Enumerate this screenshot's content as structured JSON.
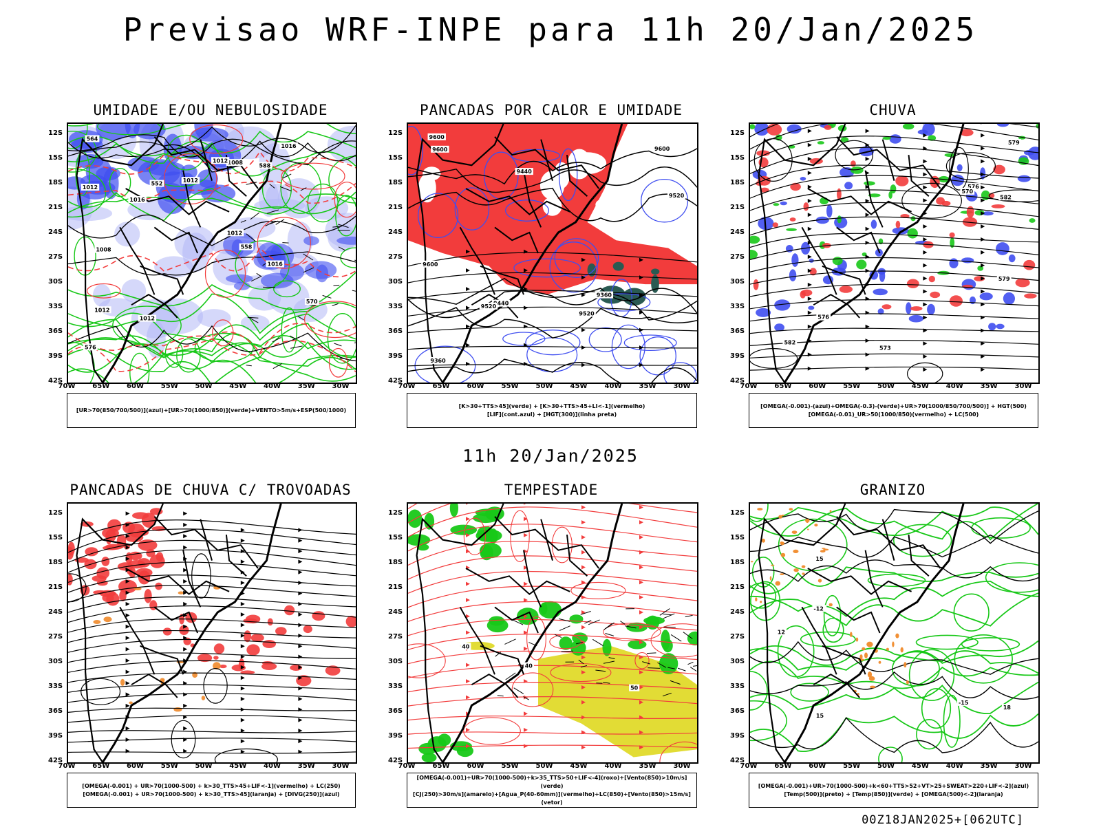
{
  "title": "Previsao WRF-INPE  para 11h 20/Jan/2025",
  "mid_title": "11h 20/Jan/2025",
  "footer": "00Z18JAN2025+[062UTC]",
  "lat_labels": [
    "12S",
    "15S",
    "18S",
    "21S",
    "24S",
    "27S",
    "30S",
    "33S",
    "36S",
    "39S",
    "42S"
  ],
  "lon_labels": [
    "70W",
    "65W",
    "60W",
    "55W",
    "50W",
    "45W",
    "40W",
    "35W",
    "30W"
  ],
  "colors": {
    "red": "#f23c3c",
    "blue": "#3f4ef0",
    "light_blue": "#b3b8f5",
    "green": "#18c818",
    "orange": "#f08a2a",
    "yellow": "#e2dc35",
    "dark_teal": "#2a5a52",
    "black": "#000000"
  },
  "panels": [
    {
      "id": "umidade",
      "title": "UMIDADE E/OU NEBULOSIDADE",
      "legend": [
        "[UR>70(850/700/500)](azul)+[UR>70(1000/850)](verde)+VENTO>5m/s+ESP(500/1000)"
      ],
      "contour_labels": [
        "1012",
        "1012",
        "1008",
        "1012",
        "1016",
        "1012",
        "1016",
        "1012",
        "1008",
        "1012",
        "1016",
        "576",
        "570",
        "564",
        "558",
        "552",
        "588"
      ]
    },
    {
      "id": "pancadas-calor",
      "title": "PANCADAS POR CALOR E UMIDADE",
      "legend": [
        "[K>30+TTS>45](verde) + [K>30+TTS>45+LI<-1](vermelho)",
        "[LIF](cont.azul) + [HGT(300)](linha preta)"
      ],
      "contour_labels": [
        "9600",
        "9600",
        "9600",
        "9600",
        "9520",
        "9520",
        "9440",
        "9440",
        "9360",
        "9360",
        "9520"
      ]
    },
    {
      "id": "chuva",
      "title": "CHUVA",
      "legend": [
        "[OMEGA(-0.001)-(azul)+OMEGA(-0.3)-(verde)+UR>70(1000/850/700/500)] + HGT(500)",
        "[OMEGA(-0.01)_UR>50(1000/850)(vermelho) + LC(500)"
      ],
      "contour_labels": [
        "582",
        "576",
        "579",
        "573",
        "570",
        "576",
        "582",
        "579"
      ]
    },
    {
      "id": "trovoadas",
      "title": "PANCADAS DE CHUVA C/ TROVOADAS",
      "legend": [
        "[OMEGA(-0.001) + UR>70(1000-500) + k>30_TTS>45+LIF<-1](vermelho) + LC(250)",
        "[OMEGA(-0.001) + UR>70(1000-500) + k>30_TTS>45](laranja) + [DIVG(250)](azul)"
      ],
      "contour_labels": []
    },
    {
      "id": "tempestade",
      "title": "TEMPESTADE",
      "legend": [
        "[OMEGA(-0.001)+UR>70(1000-500)+k>35_TTS>50+LIF<-4](roxo)+[Vento(850)>10m/s](verde)",
        "[CJ(250)>30m/s](amarelo)+[Agua_P(40-60mm)](vermelho)+LC(850)+[Vento(850)>15m/s](vetor)"
      ],
      "contour_labels": [
        "40",
        "40",
        "50"
      ]
    },
    {
      "id": "granizo",
      "title": "GRANIZO",
      "legend": [
        "[OMEGA(-0.001)+UR>70(1000-500)+k<60+TTS>52+VT>25+SWEAT>220+LIF<-2](azul)",
        "[Temp(500)](preto) + [Temp(850)](verde) + [OMEGA(500)<-2](laranja)"
      ],
      "contour_labels": [
        "-12",
        "15",
        "-15",
        "12",
        "15",
        "18"
      ]
    }
  ]
}
